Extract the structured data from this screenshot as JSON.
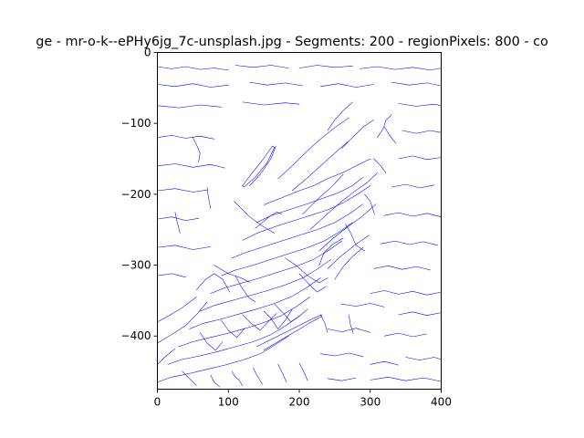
{
  "chart_data": {
    "type": "line",
    "title": "ge - mr-o-k--ePHy6jg_7c-unsplash.jpg - Segments: 200 - regionPixels: 800 - co",
    "xlabel": "",
    "ylabel": "",
    "xlim": [
      0,
      400
    ],
    "ylim": [
      -475,
      0
    ],
    "x_ticks": [
      0,
      100,
      200,
      300,
      400
    ],
    "y_ticks": [
      0,
      -100,
      -200,
      -300,
      -400
    ],
    "x_tick_labels": [
      "0",
      "100",
      "200",
      "300",
      "400"
    ],
    "y_tick_labels": [
      "0",
      "−100",
      "−200",
      "−300",
      "−400"
    ],
    "grid": false,
    "line_color": "#0000ff",
    "series": [
      {
        "x": [
          130,
          145,
          160,
          167
        ],
        "y": [
          -188,
          -172,
          -150,
          -132
        ]
      },
      {
        "x": [
          122,
          138,
          155,
          165,
          162,
          148,
          132,
          120,
          122
        ],
        "y": [
          -190,
          -176,
          -155,
          -134,
          -132,
          -152,
          -172,
          -188,
          -190
        ]
      },
      {
        "x": [
          150,
          175,
          200,
          220,
          240,
          260,
          280,
          300
        ],
        "y": [
          -215,
          -205,
          -195,
          -188,
          -178,
          -170,
          -160,
          -150
        ]
      },
      {
        "x": [
          140,
          160,
          185,
          210,
          235,
          255,
          275,
          290
        ],
        "y": [
          -240,
          -230,
          -222,
          -214,
          -205,
          -198,
          -188,
          -176
        ]
      },
      {
        "x": [
          120,
          140,
          165,
          190,
          215,
          240,
          262,
          282,
          300
        ],
        "y": [
          -265,
          -255,
          -246,
          -238,
          -230,
          -222,
          -212,
          -200,
          -188
        ]
      },
      {
        "x": [
          105,
          125,
          150,
          175,
          200,
          225,
          250,
          270,
          290
        ],
        "y": [
          -290,
          -282,
          -274,
          -266,
          -258,
          -250,
          -240,
          -228,
          -214
        ]
      },
      {
        "x": [
          90,
          110,
          135,
          160,
          185,
          210,
          235,
          255,
          275
        ],
        "y": [
          -315,
          -307,
          -300,
          -292,
          -284,
          -276,
          -266,
          -254,
          -240
        ]
      },
      {
        "x": [
          75,
          95,
          120,
          145,
          170,
          195,
          220,
          240,
          260
        ],
        "y": [
          -340,
          -332,
          -325,
          -318,
          -310,
          -302,
          -292,
          -280,
          -266
        ]
      },
      {
        "x": [
          60,
          80,
          105,
          130,
          155,
          180,
          205,
          225,
          245
        ],
        "y": [
          -365,
          -357,
          -350,
          -343,
          -336,
          -328,
          -318,
          -306,
          -292
        ]
      },
      {
        "x": [
          45,
          65,
          90,
          115,
          140,
          165,
          190,
          210,
          230
        ],
        "y": [
          -390,
          -382,
          -376,
          -369,
          -362,
          -354,
          -344,
          -332,
          -318
        ]
      },
      {
        "x": [
          30,
          50,
          75,
          100,
          125,
          150,
          175,
          195,
          215
        ],
        "y": [
          -415,
          -408,
          -402,
          -396,
          -389,
          -381,
          -371,
          -359,
          -345
        ]
      },
      {
        "x": [
          15,
          35,
          60,
          85,
          110,
          135,
          160,
          180,
          200
        ],
        "y": [
          -440,
          -433,
          -428,
          -422,
          -415,
          -408,
          -398,
          -386,
          -372
        ]
      },
      {
        "x": [
          0,
          20,
          45,
          70,
          95,
          120,
          145,
          165,
          185
        ],
        "y": [
          -465,
          -458,
          -453,
          -447,
          -441,
          -434,
          -425,
          -413,
          -400
        ]
      },
      {
        "x": [
          0,
          15,
          35,
          55
        ],
        "y": [
          -380,
          -372,
          -360,
          -345
        ]
      },
      {
        "x": [
          0,
          20,
          40,
          55,
          70
        ],
        "y": [
          -410,
          -398,
          -385,
          -370,
          -352
        ]
      },
      {
        "x": [
          0,
          10,
          25
        ],
        "y": [
          -440,
          -430,
          -418
        ]
      },
      {
        "x": [
          170,
          190,
          210,
          230,
          250,
          270
        ],
        "y": [
          -178,
          -160,
          -140,
          -122,
          -106,
          -92
        ]
      },
      {
        "x": [
          190,
          210,
          230,
          250,
          268
        ],
        "y": [
          -195,
          -178,
          -160,
          -142,
          -126
        ]
      },
      {
        "x": [
          205,
          225,
          245,
          262
        ],
        "y": [
          -228,
          -208,
          -190,
          -172
        ]
      },
      {
        "x": [
          215,
          235,
          255,
          275,
          295,
          310
        ],
        "y": [
          -250,
          -232,
          -214,
          -198,
          -184,
          -170
        ]
      },
      {
        "x": [
          228,
          248,
          268,
          290,
          308
        ],
        "y": [
          -280,
          -262,
          -246,
          -230,
          -214
        ]
      },
      {
        "x": [
          240,
          258,
          278,
          298
        ],
        "y": [
          -305,
          -288,
          -272,
          -258
        ]
      },
      {
        "x": [
          250,
          262,
          275,
          290
        ],
        "y": [
          -320,
          -302,
          -288,
          -275
        ]
      },
      {
        "x": [
          228,
          235,
          248,
          262
        ],
        "y": [
          -300,
          -282,
          -270,
          -262
        ]
      },
      {
        "x": [
          150,
          160,
          170,
          180,
          190
        ],
        "y": [
          -365,
          -375,
          -390,
          -378,
          -362
        ]
      },
      {
        "x": [
          165,
          178,
          188,
          200,
          212
        ],
        "y": [
          -355,
          -368,
          -380,
          -372,
          -362
        ]
      },
      {
        "x": [
          120,
          132,
          145,
          156,
          168
        ],
        "y": [
          -370,
          -382,
          -392,
          -380,
          -368
        ]
      },
      {
        "x": [
          90,
          100,
          112,
          122
        ],
        "y": [
          -378,
          -392,
          -402,
          -390
        ]
      },
      {
        "x": [
          60,
          70,
          82,
          92
        ],
        "y": [
          -395,
          -410,
          -420,
          -408
        ]
      },
      {
        "x": [
          140,
          160,
          180,
          200,
          220,
          232
        ],
        "y": [
          -415,
          -405,
          -395,
          -385,
          -375,
          -370
        ]
      },
      {
        "x": [
          150,
          170,
          192,
          214,
          232
        ],
        "y": [
          -420,
          -408,
          -395,
          -382,
          -372
        ]
      },
      {
        "x": [
          108,
          128,
          148,
          165
        ],
        "y": [
          -210,
          -230,
          -245,
          -255
        ]
      },
      {
        "x": [
          138,
          150,
          160,
          168,
          175
        ],
        "y": [
          -248,
          -238,
          -230,
          -225,
          -228
        ]
      },
      {
        "x": [
          80,
          100,
          118,
          130
        ],
        "y": [
          -300,
          -312,
          -318,
          -324
        ]
      },
      {
        "x": [
          55,
          68,
          80,
          92,
          102
        ],
        "y": [
          -335,
          -320,
          -312,
          -320,
          -338
        ]
      },
      {
        "x": [
          110,
          118,
          128,
          138
        ],
        "y": [
          -315,
          -330,
          -345,
          -352
        ]
      },
      {
        "x": [
          180,
          195,
          212,
          228,
          240
        ],
        "y": [
          -290,
          -300,
          -315,
          -325,
          -318
        ]
      },
      {
        "x": [
          200,
          212,
          225,
          238
        ],
        "y": [
          -312,
          -325,
          -338,
          -330
        ]
      },
      {
        "x": [
          265,
          272,
          280,
          292
        ],
        "y": [
          -242,
          -254,
          -272,
          -280
        ]
      },
      {
        "x": [
          292,
          300,
          306
        ],
        "y": [
          -200,
          -210,
          -228
        ]
      },
      {
        "x": [
          305,
          315,
          322
        ],
        "y": [
          -150,
          -160,
          -170
        ]
      },
      {
        "x": [
          310,
          318,
          322,
          330
        ],
        "y": [
          -120,
          -108,
          -96,
          -88
        ]
      },
      {
        "x": [
          320,
          328,
          336
        ],
        "y": [
          -105,
          -118,
          -128
        ]
      },
      {
        "x": [
          240,
          250,
          262,
          275
        ],
        "y": [
          -110,
          -95,
          -82,
          -70
        ]
      },
      {
        "x": [
          260,
          275,
          290,
          305
        ],
        "y": [
          -135,
          -120,
          -105,
          -95
        ]
      },
      {
        "x": [
          0,
          20,
          40,
          60,
          80,
          100
        ],
        "y": [
          -20,
          -23,
          -20,
          -24,
          -22,
          -25
        ]
      },
      {
        "x": [
          110,
          135,
          160,
          185
        ],
        "y": [
          -18,
          -21,
          -18,
          -22
        ]
      },
      {
        "x": [
          200,
          225,
          250,
          275
        ],
        "y": [
          -22,
          -18,
          -21,
          -19
        ]
      },
      {
        "x": [
          285,
          310,
          335,
          360,
          385,
          400
        ],
        "y": [
          -23,
          -20,
          -24,
          -21,
          -25,
          -22
        ]
      },
      {
        "x": [
          0,
          25,
          50,
          75,
          100
        ],
        "y": [
          -45,
          -48,
          -44,
          -49,
          -46
        ]
      },
      {
        "x": [
          130,
          155,
          180,
          205
        ],
        "y": [
          -42,
          -46,
          -43,
          -47
        ]
      },
      {
        "x": [
          230,
          255,
          280,
          305
        ],
        "y": [
          -48,
          -44,
          -49,
          -45
        ]
      },
      {
        "x": [
          330,
          355,
          380,
          400
        ],
        "y": [
          -42,
          -46,
          -43,
          -47
        ]
      },
      {
        "x": [
          0,
          30,
          60,
          90
        ],
        "y": [
          -75,
          -78,
          -74,
          -77
        ]
      },
      {
        "x": [
          120,
          150,
          180,
          200
        ],
        "y": [
          -70,
          -74,
          -71,
          -73
        ]
      },
      {
        "x": [
          340,
          365,
          390,
          400
        ],
        "y": [
          -72,
          -76,
          -73,
          -75
        ]
      },
      {
        "x": [
          0,
          20,
          40,
          60,
          80
        ],
        "y": [
          -120,
          -117,
          -121,
          -118,
          -122
        ]
      },
      {
        "x": [
          0,
          25,
          50,
          75,
          95
        ],
        "y": [
          -160,
          -157,
          -162,
          -158,
          -163
        ]
      },
      {
        "x": [
          0,
          25,
          50,
          70
        ],
        "y": [
          -195,
          -192,
          -197,
          -194
        ]
      },
      {
        "x": [
          0,
          20,
          40,
          58
        ],
        "y": [
          -235,
          -232,
          -237,
          -234
        ]
      },
      {
        "x": [
          0,
          25,
          50,
          75
        ],
        "y": [
          -275,
          -272,
          -278,
          -274
        ]
      },
      {
        "x": [
          0,
          20,
          40
        ],
        "y": [
          -315,
          -312,
          -317
        ]
      },
      {
        "x": [
          50,
          55,
          60,
          58
        ],
        "y": [
          -120,
          -130,
          -142,
          -155
        ]
      },
      {
        "x": [
          70,
          72,
          75
        ],
        "y": [
          -190,
          -205,
          -220
        ]
      },
      {
        "x": [
          25,
          28,
          32
        ],
        "y": [
          -225,
          -240,
          -255
        ]
      },
      {
        "x": [
          345,
          365,
          385,
          400
        ],
        "y": [
          -110,
          -114,
          -110,
          -113
        ]
      },
      {
        "x": [
          340,
          360,
          380,
          400
        ],
        "y": [
          -150,
          -146,
          -151,
          -148
        ]
      },
      {
        "x": [
          330,
          350,
          370,
          390
        ],
        "y": [
          -190,
          -186,
          -191,
          -187
        ]
      },
      {
        "x": [
          320,
          340,
          360,
          380,
          400
        ],
        "y": [
          -230,
          -226,
          -231,
          -227,
          -232
        ]
      },
      {
        "x": [
          315,
          335,
          355,
          375,
          395
        ],
        "y": [
          -270,
          -266,
          -271,
          -267,
          -272
        ]
      },
      {
        "x": [
          305,
          325,
          345,
          365,
          385
        ],
        "y": [
          -305,
          -301,
          -306,
          -302,
          -307
        ]
      },
      {
        "x": [
          300,
          320,
          340,
          360,
          380,
          400
        ],
        "y": [
          -340,
          -336,
          -341,
          -337,
          -342,
          -338
        ]
      },
      {
        "x": [
          260,
          280,
          300,
          320
        ],
        "y": [
          -355,
          -358,
          -354,
          -359
        ]
      },
      {
        "x": [
          340,
          360,
          380,
          400
        ],
        "y": [
          -370,
          -366,
          -371,
          -367
        ]
      },
      {
        "x": [
          240,
          260,
          280,
          300
        ],
        "y": [
          -390,
          -394,
          -389,
          -395
        ]
      },
      {
        "x": [
          320,
          340,
          360,
          380
        ],
        "y": [
          -400,
          -396,
          -401,
          -397
        ]
      },
      {
        "x": [
          230,
          250,
          270,
          290
        ],
        "y": [
          -425,
          -428,
          -424,
          -429
        ]
      },
      {
        "x": [
          300,
          320,
          340
        ],
        "y": [
          -440,
          -436,
          -441
        ]
      },
      {
        "x": [
          350,
          370,
          390,
          400
        ],
        "y": [
          -430,
          -434,
          -430,
          -433
        ]
      },
      {
        "x": [
          240,
          260,
          280
        ],
        "y": [
          -460,
          -463,
          -459
        ]
      },
      {
        "x": [
          300,
          325,
          350,
          375,
          400
        ],
        "y": [
          -462,
          -458,
          -463,
          -459,
          -464
        ]
      },
      {
        "x": [
          230,
          236,
          240
        ],
        "y": [
          -370,
          -382,
          -395
        ]
      },
      {
        "x": [
          270,
          272,
          276
        ],
        "y": [
          -370,
          -384,
          -396
        ]
      },
      {
        "x": [
          105,
          110,
          115,
          120
        ],
        "y": [
          -450,
          -458,
          -462,
          -470
        ]
      },
      {
        "x": [
          135,
          140,
          148
        ],
        "y": [
          -445,
          -455,
          -468
        ]
      },
      {
        "x": [
          170,
          176,
          182
        ],
        "y": [
          -440,
          -452,
          -465
        ]
      },
      {
        "x": [
          200,
          206,
          212
        ],
        "y": [
          -438,
          -450,
          -463
        ]
      },
      {
        "x": [
          35,
          45,
          55
        ],
        "y": [
          -450,
          -460,
          -470
        ]
      },
      {
        "x": [
          75,
          80,
          88
        ],
        "y": [
          -455,
          -465,
          -472
        ]
      }
    ]
  }
}
